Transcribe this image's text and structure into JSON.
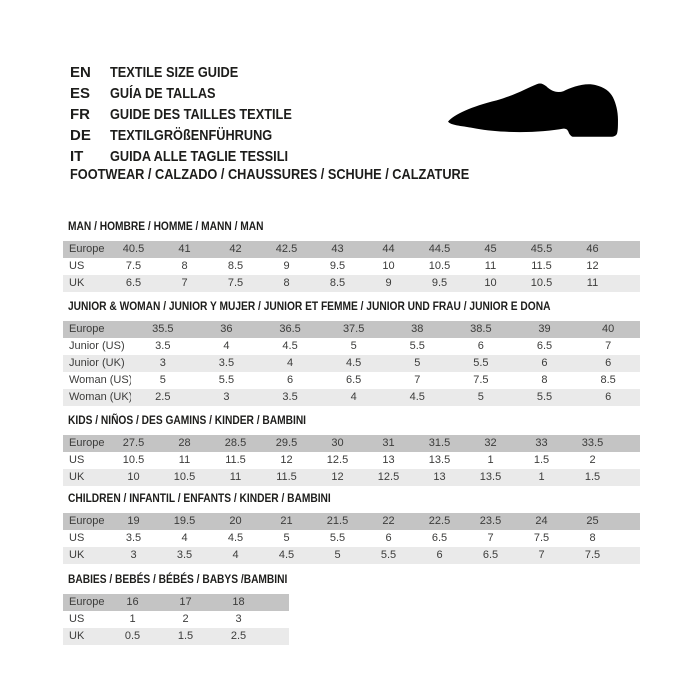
{
  "header": {
    "languages": [
      {
        "code": "EN",
        "label": "TEXTILE SIZE GUIDE"
      },
      {
        "code": "ES",
        "label": "GUÍA DE TALLAS"
      },
      {
        "code": "FR",
        "label": "GUIDE DES TAILLES TEXTILE"
      },
      {
        "code": "DE",
        "label": "TEXTILGRÖßENFÜHRUNG"
      },
      {
        "code": "IT",
        "label": "GUIDA ALLE TAGLIE TESSILI"
      }
    ],
    "shoe_icon": "dress-shoe-silhouette",
    "category_title": "FOOTWEAR / CALZADO / CHAUSSURES / SCHUHE / CALZATURE"
  },
  "colors": {
    "header_row_bg": "#c4c4c4",
    "alt_row_bg": "#eaeaea",
    "text": "#1d1d1b",
    "shoe_icon": "#000000"
  },
  "tables": [
    {
      "id": "man",
      "title": "MAN / HOMBRE / HOMME / MANN / MAN",
      "rows": [
        {
          "label": "Europe",
          "values": [
            "40.5",
            "41",
            "42",
            "42.5",
            "43",
            "44",
            "44.5",
            "45",
            "45.5",
            "46"
          ]
        },
        {
          "label": "US",
          "values": [
            "7.5",
            "8",
            "8.5",
            "9",
            "9.5",
            "10",
            "10.5",
            "11",
            "11.5",
            "12"
          ]
        },
        {
          "label": "UK",
          "values": [
            "6.5",
            "7",
            "7.5",
            "8",
            "8.5",
            "9",
            "9.5",
            "10",
            "10.5",
            "11"
          ]
        }
      ]
    },
    {
      "id": "junior-woman",
      "title": "JUNIOR & WOMAN / JUNIOR Y MUJER / JUNIOR ET FEMME / JUNIOR UND FRAU / JUNIOR E DONA",
      "rows": [
        {
          "label": "Europe",
          "values": [
            "35.5",
            "36",
            "36.5",
            "37.5",
            "38",
            "38.5",
            "39",
            "40"
          ]
        },
        {
          "label": "Junior (US)",
          "values": [
            "3.5",
            "4",
            "4.5",
            "5",
            "5.5",
            "6",
            "6.5",
            "7"
          ]
        },
        {
          "label": "Junior (UK)",
          "values": [
            "3",
            "3.5",
            "4",
            "4.5",
            "5",
            "5.5",
            "6",
            "6"
          ]
        },
        {
          "label": "Woman (US)",
          "values": [
            "5",
            "5.5",
            "6",
            "6.5",
            "7",
            "7.5",
            "8",
            "8.5"
          ]
        },
        {
          "label": "Woman (UK)",
          "values": [
            "2.5",
            "3",
            "3.5",
            "4",
            "4.5",
            "5",
            "5.5",
            "6"
          ]
        }
      ]
    },
    {
      "id": "kids",
      "title": "KIDS / NIÑOS / DES GAMINS / KINDER / BAMBINI",
      "rows": [
        {
          "label": "Europe",
          "values": [
            "27.5",
            "28",
            "28.5",
            "29.5",
            "30",
            "31",
            "31.5",
            "32",
            "33",
            "33.5"
          ]
        },
        {
          "label": "US",
          "values": [
            "10.5",
            "11",
            "11.5",
            "12",
            "12.5",
            "13",
            "13.5",
            "1",
            "1.5",
            "2"
          ]
        },
        {
          "label": "UK",
          "values": [
            "10",
            "10.5",
            "11",
            "11.5",
            "12",
            "12.5",
            "13",
            "13.5",
            "1",
            "1.5"
          ]
        }
      ]
    },
    {
      "id": "children",
      "title": "CHILDREN / INFANTIL / ENFANTS / KINDER / BAMBINI",
      "rows": [
        {
          "label": "Europe",
          "values": [
            "19",
            "19.5",
            "20",
            "21",
            "21.5",
            "22",
            "22.5",
            "23.5",
            "24",
            "25"
          ]
        },
        {
          "label": "US",
          "values": [
            "3.5",
            "4",
            "4.5",
            "5",
            "5.5",
            "6",
            "6.5",
            "7",
            "7.5",
            "8"
          ]
        },
        {
          "label": "UK",
          "values": [
            "3",
            "3.5",
            "4",
            "4.5",
            "5",
            "5.5",
            "6",
            "6.5",
            "7",
            "7.5"
          ]
        }
      ]
    },
    {
      "id": "babies",
      "title": "BABIES  / BEBÉS / BÉBÉS / BABYS /BAMBINI",
      "rows": [
        {
          "label": "Europe",
          "values": [
            "16",
            "17",
            "18"
          ]
        },
        {
          "label": "US",
          "values": [
            "1",
            "2",
            "3"
          ]
        },
        {
          "label": "UK",
          "values": [
            "0.5",
            "1.5",
            "2.5"
          ]
        }
      ]
    }
  ]
}
